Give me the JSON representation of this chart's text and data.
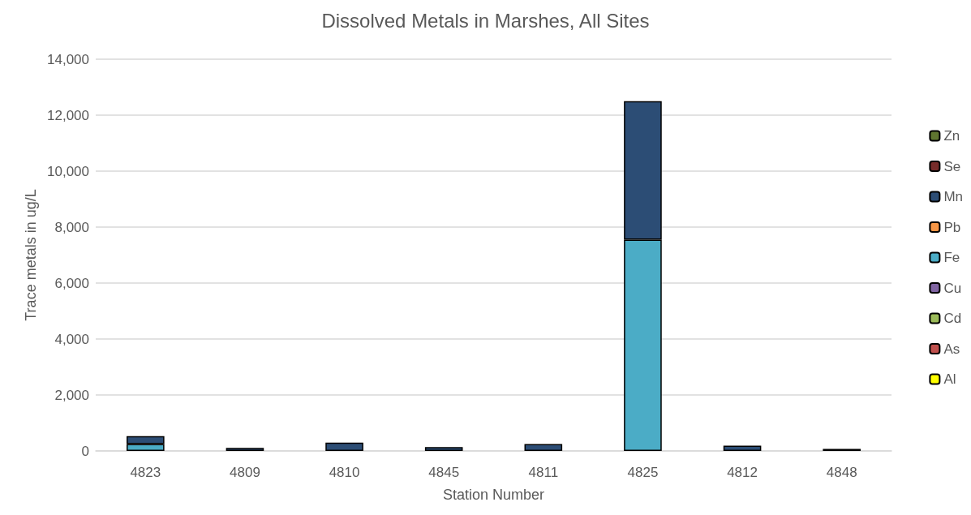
{
  "chart_data": {
    "type": "bar",
    "title": "Dissolved Metals in Marshes, All Sites",
    "xlabel": "Station Number",
    "ylabel": "Trace metals in ug/L",
    "categories": [
      "4823",
      "4809",
      "4810",
      "4845",
      "4811",
      "4825",
      "4812",
      "4848"
    ],
    "stacked": true,
    "series": [
      {
        "name": "Al",
        "color": "#ffff00",
        "values": [
          null,
          null,
          null,
          null,
          null,
          null,
          null,
          null
        ]
      },
      {
        "name": "As",
        "color": "#c0504d",
        "values": [
          null,
          null,
          null,
          null,
          null,
          null,
          null,
          null
        ]
      },
      {
        "name": "Cd",
        "color": "#9bbb59",
        "values": [
          null,
          null,
          null,
          null,
          null,
          null,
          null,
          null
        ]
      },
      {
        "name": "Cu",
        "color": "#8064a2",
        "values": [
          null,
          null,
          null,
          null,
          null,
          null,
          null,
          null
        ]
      },
      {
        "name": "Fe",
        "color": "#4bacc6",
        "values": [
          250,
          null,
          null,
          null,
          null,
          7550,
          null,
          null
        ]
      },
      {
        "name": "Pb",
        "color": "#f79646",
        "values": [
          null,
          null,
          null,
          null,
          null,
          null,
          null,
          null
        ]
      },
      {
        "name": "Mn",
        "color": "#2c4d75",
        "values": [
          280,
          110,
          300,
          140,
          250,
          4950,
          190,
          70
        ]
      },
      {
        "name": "Se",
        "color": "#772c2a",
        "values": [
          null,
          null,
          null,
          null,
          null,
          null,
          null,
          null
        ]
      },
      {
        "name": "Zn",
        "color": "#5f7530",
        "values": [
          null,
          null,
          null,
          null,
          null,
          null,
          null,
          null
        ]
      }
    ],
    "ylim": [
      0,
      14000
    ],
    "yticks": [
      0,
      {
        "value": 2000,
        "label": "2,000"
      },
      {
        "value": 4000,
        "label": "4,000"
      },
      {
        "value": 6000,
        "label": "6,000"
      },
      {
        "value": 8000,
        "label": "8,000"
      },
      {
        "value": 10000,
        "label": "10,000"
      },
      {
        "value": 12000,
        "label": "12,000"
      },
      {
        "value": 14000,
        "label": "14,000"
      }
    ],
    "grid": "y",
    "legend": "right"
  }
}
